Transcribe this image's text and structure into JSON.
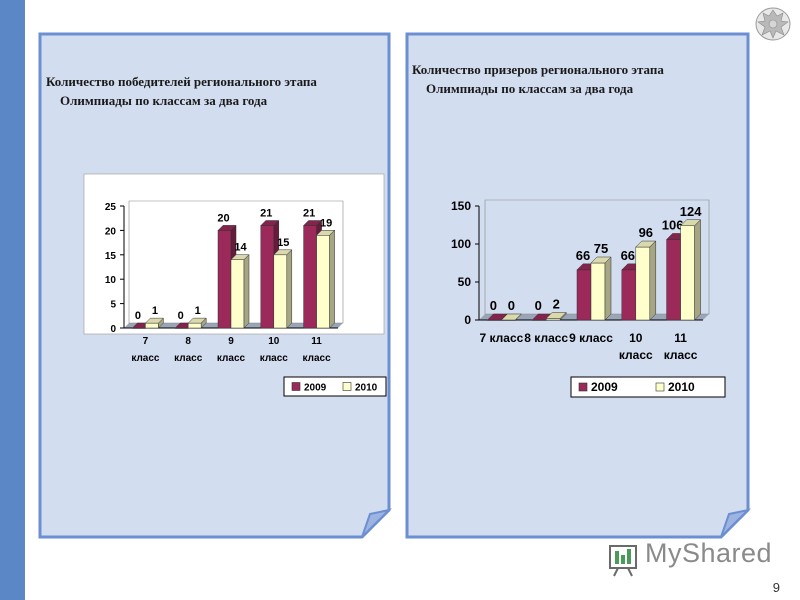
{
  "slide": {
    "number": "9",
    "watermark": "MyShared"
  },
  "panels": [
    {
      "title_line1": "Количество победителей регионального этапа",
      "title_line2": "Олимпиады по классам за два года"
    },
    {
      "title_line1": "Количество призеров регионального этапа",
      "title_line2": "Олимпиады по классам за два года"
    }
  ],
  "colors": {
    "panel_bg": "#d3ddf0",
    "panel_border": "#6b8fd1",
    "stripe": "#5b87c7",
    "series_2009": "#9b2a5a",
    "series_2010": "#ffffcc"
  },
  "chart_data": [
    {
      "type": "bar",
      "categories": [
        [
          "7",
          "класс"
        ],
        [
          "8",
          "класс"
        ],
        [
          "9",
          "класс"
        ],
        [
          "10",
          "класс"
        ],
        [
          "11",
          "класс"
        ]
      ],
      "series": [
        {
          "name": "2009",
          "values": [
            0,
            0,
            20,
            21,
            21
          ]
        },
        {
          "name": "2010",
          "values": [
            1,
            1,
            14,
            15,
            19
          ]
        }
      ],
      "yticks": [
        "0",
        "5",
        "10",
        "15",
        "20",
        "25"
      ],
      "ylim": [
        0,
        25
      ],
      "legend": "bottom-right"
    },
    {
      "type": "bar",
      "categories": [
        [
          "7 класс"
        ],
        [
          "8 класс"
        ],
        [
          "9 класс"
        ],
        [
          "10",
          "класс"
        ],
        [
          "11",
          "класс"
        ]
      ],
      "series": [
        {
          "name": "2009",
          "values": [
            0,
            0,
            66,
            66,
            106
          ]
        },
        {
          "name": "2010",
          "values": [
            0,
            2,
            75,
            96,
            124
          ]
        }
      ],
      "yticks": [
        "0",
        "50",
        "100",
        "150"
      ],
      "ylim": [
        0,
        150
      ],
      "legend": "bottom-right"
    }
  ]
}
